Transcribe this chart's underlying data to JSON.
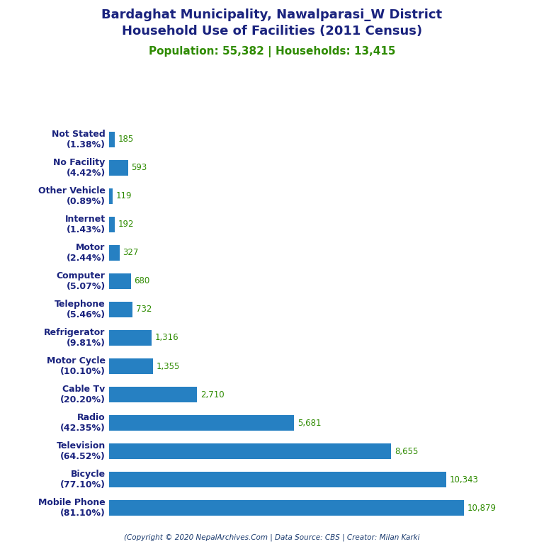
{
  "title_line1": "Bardaghat Municipality, Nawalparasi_W District",
  "title_line2": "Household Use of Facilities (2011 Census)",
  "subtitle": "Population: 55,382 | Households: 13,415",
  "subtitle_color": "#2e8b00",
  "title_color": "#1a237e",
  "categories": [
    "Mobile Phone\n(81.10%)",
    "Bicycle\n(77.10%)",
    "Television\n(64.52%)",
    "Radio\n(42.35%)",
    "Cable Tv\n(20.20%)",
    "Motor Cycle\n(10.10%)",
    "Refrigerator\n(9.81%)",
    "Telephone\n(5.46%)",
    "Computer\n(5.07%)",
    "Motor\n(2.44%)",
    "Internet\n(1.43%)",
    "Other Vehicle\n(0.89%)",
    "No Facility\n(4.42%)",
    "Not Stated\n(1.38%)"
  ],
  "values": [
    10879,
    10343,
    8655,
    5681,
    2710,
    1355,
    1316,
    732,
    680,
    327,
    192,
    119,
    593,
    185
  ],
  "value_labels": [
    "10,879",
    "10,343",
    "8,655",
    "5,681",
    "2,710",
    "1,355",
    "1,316",
    "732",
    "680",
    "327",
    "192",
    "119",
    "593",
    "185"
  ],
  "bar_color": "#2680c2",
  "value_color": "#2e8b00",
  "footer": "(Copyright © 2020 NepalArchives.Com | Data Source: CBS | Creator: Milan Karki",
  "footer_color": "#1a3a6e",
  "bg_color": "#ffffff",
  "xlim_max": 12000,
  "title_fontsize": 13,
  "subtitle_fontsize": 11,
  "label_fontsize": 9,
  "value_fontsize": 8.5,
  "footer_fontsize": 7.5,
  "bar_height": 0.55
}
